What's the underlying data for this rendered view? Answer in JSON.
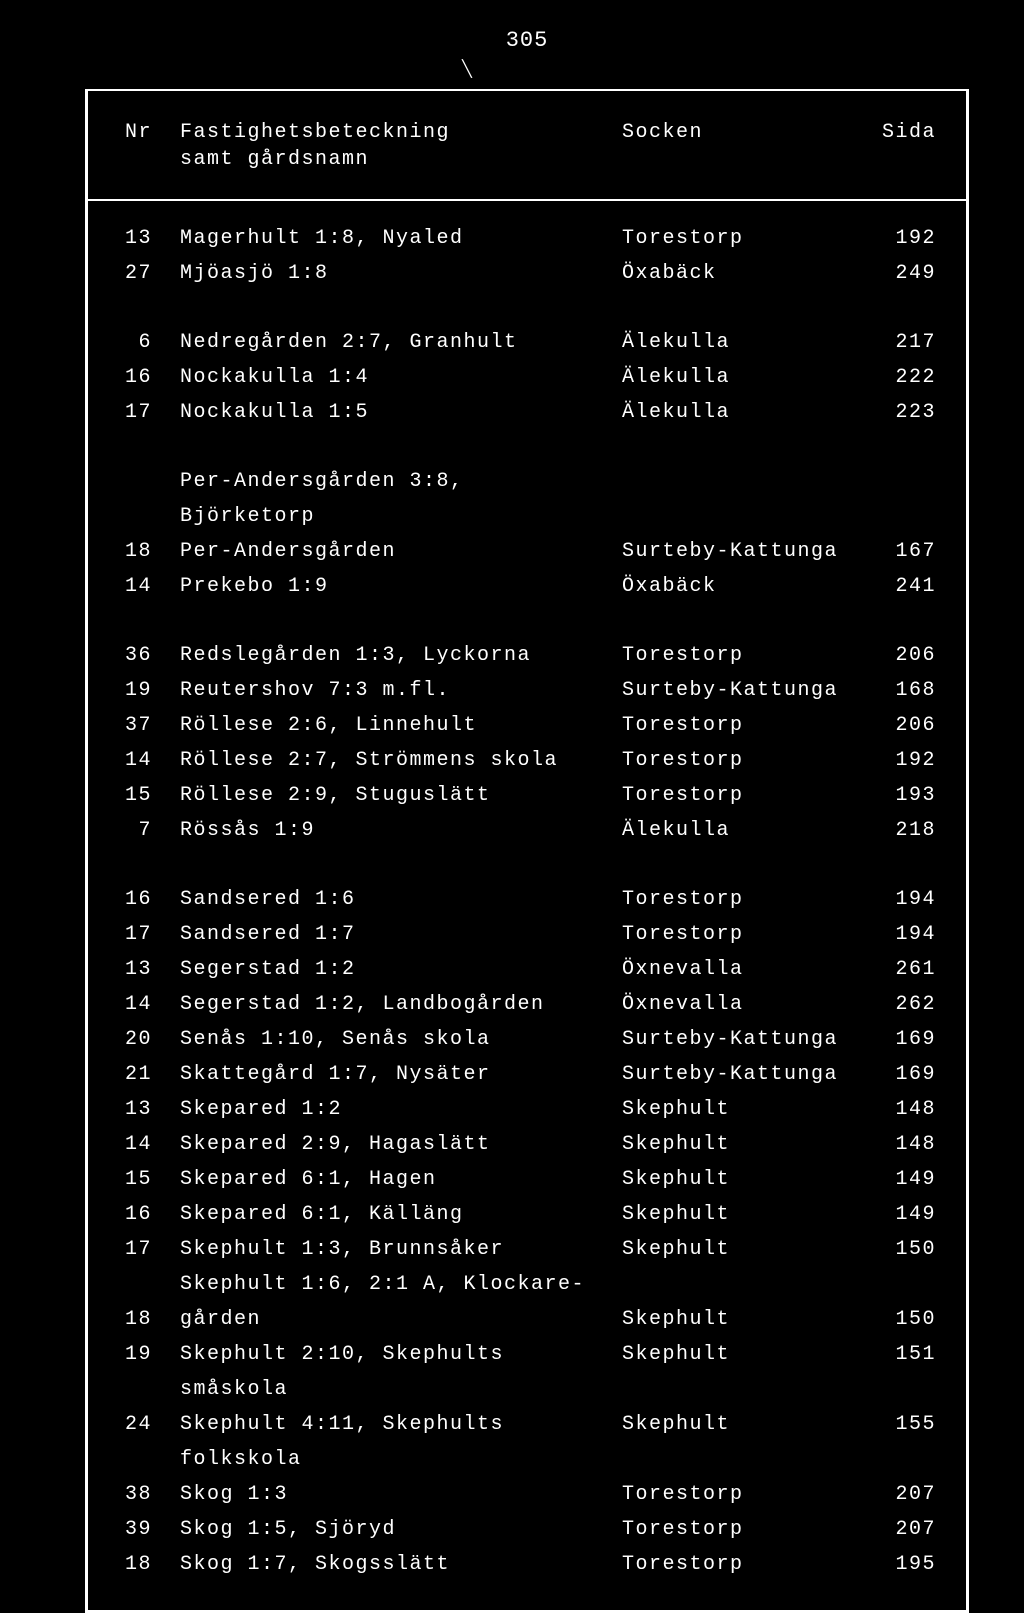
{
  "page_number": "305",
  "headers": {
    "nr": "Nr",
    "fastighet_line1": "Fastighetsbeteckning",
    "fastighet_line2": "samt gårdsnamn",
    "socken": "Socken",
    "sida": "Sida"
  },
  "groups": [
    [
      {
        "nr": "13",
        "fast": "Magerhult 1:8, Nyaled",
        "socken": "Torestorp",
        "sida": "192"
      },
      {
        "nr": "27",
        "fast": "Mjöasjö 1:8",
        "socken": "Öxabäck",
        "sida": "249"
      }
    ],
    [
      {
        "nr": "6",
        "fast": "Nedregården 2:7, Granhult",
        "socken": "Älekulla",
        "sida": "217"
      },
      {
        "nr": "16",
        "fast": "Nockakulla 1:4",
        "socken": "Älekulla",
        "sida": "222"
      },
      {
        "nr": "17",
        "fast": "Nockakulla 1:5",
        "socken": "Älekulla",
        "sida": "223"
      }
    ],
    [
      {
        "nr": "18",
        "fast": "Per-Andersgården 3:8, Björketorp",
        "fast2": "Per-Andersgården",
        "socken": "Surteby-Kattunga",
        "sida": "167"
      },
      {
        "nr": "14",
        "fast": "Prekebo 1:9",
        "socken": "Öxabäck",
        "sida": "241"
      }
    ],
    [
      {
        "nr": "36",
        "fast": "Redslegården 1:3, Lyckorna",
        "socken": "Torestorp",
        "sida": "206"
      },
      {
        "nr": "19",
        "fast": "Reutershov 7:3 m.fl.",
        "socken": "Surteby-Kattunga",
        "sida": "168"
      },
      {
        "nr": "37",
        "fast": "Röllese 2:6, Linnehult",
        "socken": "Torestorp",
        "sida": "206"
      },
      {
        "nr": "14",
        "fast": "Röllese 2:7, Strömmens skola",
        "socken": "Torestorp",
        "sida": "192"
      },
      {
        "nr": "15",
        "fast": "Röllese 2:9, Stuguslätt",
        "socken": "Torestorp",
        "sida": "193"
      },
      {
        "nr": "7",
        "fast": "Rössås 1:9",
        "socken": "Älekulla",
        "sida": "218"
      }
    ],
    [
      {
        "nr": "16",
        "fast": "Sandsered 1:6",
        "socken": "Torestorp",
        "sida": "194"
      },
      {
        "nr": "17",
        "fast": "Sandsered 1:7",
        "socken": "Torestorp",
        "sida": "194"
      },
      {
        "nr": "13",
        "fast": "Segerstad 1:2",
        "socken": "Öxnevalla",
        "sida": "261"
      },
      {
        "nr": "14",
        "fast": "Segerstad 1:2, Landbogården",
        "socken": "Öxnevalla",
        "sida": "262"
      },
      {
        "nr": "20",
        "fast": "Senås 1:10, Senås skola",
        "socken": "Surteby-Kattunga",
        "sida": "169"
      },
      {
        "nr": "21",
        "fast": "Skattegård 1:7, Nysäter",
        "socken": "Surteby-Kattunga",
        "sida": "169"
      },
      {
        "nr": "13",
        "fast": "Skepared 1:2",
        "socken": "Skephult",
        "sida": "148"
      },
      {
        "nr": "14",
        "fast": "Skepared 2:9, Hagaslätt",
        "socken": "Skephult",
        "sida": "148"
      },
      {
        "nr": "15",
        "fast": "Skepared 6:1, Hagen",
        "socken": "Skephult",
        "sida": "149"
      },
      {
        "nr": "16",
        "fast": "Skepared 6:1, Källäng",
        "socken": "Skephult",
        "sida": "149"
      },
      {
        "nr": "17",
        "fast": "Skephult 1:3, Brunnsåker",
        "socken": "Skephult",
        "sida": "150"
      },
      {
        "nr": "18",
        "fast": "Skephult 1:6, 2:1 A, Klockare-",
        "fast2": "gården",
        "socken": "Skephult",
        "sida": "150"
      },
      {
        "nr": "19",
        "fast": "Skephult 2:10, Skephults småskola",
        "socken": "Skephult",
        "sida": "151"
      },
      {
        "nr": "24",
        "fast": "Skephult 4:11, Skephults folkskola",
        "socken": "Skephult",
        "sida": "155"
      },
      {
        "nr": "38",
        "fast": "Skog 1:3",
        "socken": "Torestorp",
        "sida": "207"
      },
      {
        "nr": "39",
        "fast": "Skog 1:5, Sjöryd",
        "socken": "Torestorp",
        "sida": "207"
      },
      {
        "nr": "18",
        "fast": "Skog 1:7, Skogsslätt",
        "socken": "Torestorp",
        "sida": "195"
      }
    ]
  ]
}
